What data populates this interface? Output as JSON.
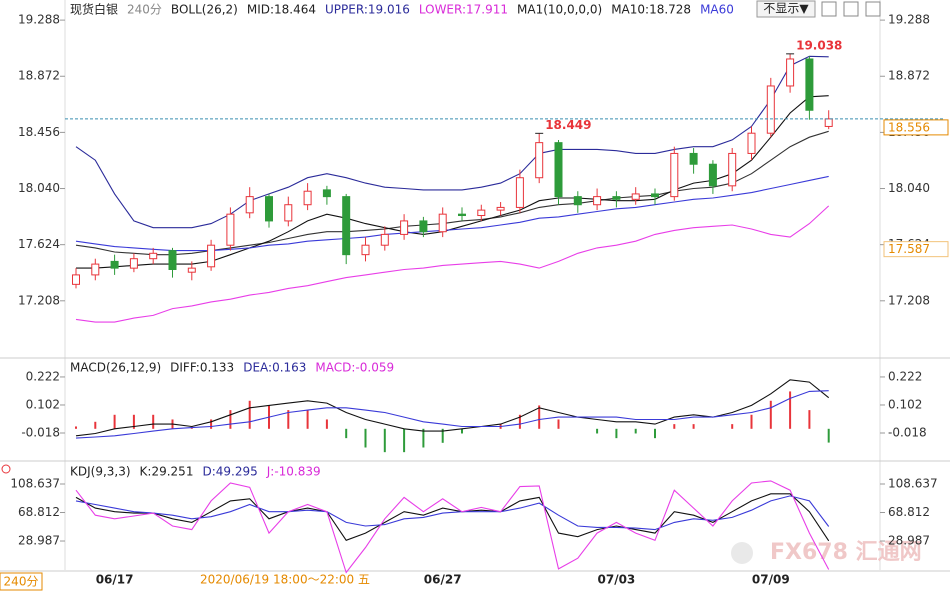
{
  "toolbar": {
    "hide_button": "不显示▼"
  },
  "watermark": "FX678 汇通网",
  "period_box": "240分",
  "chart_data": [
    {
      "type": "candlestick",
      "header": [
        {
          "text": "现货白银",
          "color": "#222222"
        },
        {
          "text": "240分",
          "color": "#888888"
        },
        {
          "text": "BOLL(26,2)",
          "color": "#222222"
        },
        {
          "text": "MID:18.464",
          "color": "#222222"
        },
        {
          "text": "UPPER:19.016",
          "color": "#2b2b9a"
        },
        {
          "text": "LOWER:17.911",
          "color": "#d82ad8"
        },
        {
          "text": "MA1(10,0,0,0)",
          "color": "#222222"
        },
        {
          "text": "MA10:18.728",
          "color": "#222222"
        },
        {
          "text": "MA60",
          "color": "#3a3ad8"
        }
      ],
      "categories": [
        null,
        null,
        "06/17",
        null,
        null,
        null,
        null,
        null,
        null,
        null,
        null,
        null,
        null,
        null,
        null,
        null,
        null,
        null,
        null,
        "06/27",
        null,
        null,
        null,
        null,
        null,
        null,
        null,
        null,
        "07/03",
        null,
        null,
        null,
        null,
        null,
        null,
        null,
        "07/09",
        null,
        null,
        null
      ],
      "cursor_label": "2020/06/19 18:00～22:00 五",
      "up_color": "#e8343a",
      "down_color": "#2e9b3a",
      "open": [
        17.33,
        17.4,
        17.5,
        17.45,
        17.52,
        17.58,
        17.42,
        17.46,
        17.62,
        17.86,
        17.98,
        17.8,
        17.92,
        18.03,
        17.98,
        17.55,
        17.62,
        17.7,
        17.8,
        17.72,
        17.85,
        17.84,
        17.88,
        17.9,
        18.12,
        18.38,
        17.98,
        17.92,
        17.98,
        17.96,
        18.0,
        17.98,
        18.3,
        18.22,
        18.06,
        18.3,
        18.45,
        18.8,
        19.0,
        18.5
      ],
      "high": [
        17.45,
        17.52,
        17.55,
        17.56,
        17.6,
        17.6,
        17.5,
        17.66,
        17.9,
        18.05,
        18.0,
        17.98,
        18.08,
        18.06,
        18.0,
        17.68,
        17.76,
        17.85,
        17.83,
        17.9,
        17.9,
        17.92,
        17.94,
        18.18,
        18.449,
        18.4,
        18.02,
        18.04,
        18.02,
        18.05,
        18.04,
        18.35,
        18.34,
        18.25,
        18.34,
        18.5,
        18.86,
        19.038,
        19.02,
        18.62
      ],
      "high_labels": [
        null,
        null,
        null,
        null,
        null,
        null,
        null,
        null,
        null,
        null,
        null,
        null,
        null,
        null,
        null,
        null,
        null,
        null,
        null,
        null,
        null,
        null,
        null,
        null,
        "18.449",
        null,
        null,
        null,
        null,
        null,
        null,
        null,
        null,
        null,
        null,
        null,
        null,
        "19.038",
        null,
        null
      ],
      "low": [
        17.3,
        17.36,
        17.4,
        17.42,
        17.48,
        17.38,
        17.36,
        17.43,
        17.58,
        17.82,
        17.75,
        17.76,
        17.88,
        17.92,
        17.48,
        17.5,
        17.58,
        17.66,
        17.68,
        17.68,
        17.8,
        17.8,
        17.84,
        17.86,
        18.08,
        17.92,
        17.86,
        17.88,
        17.9,
        17.92,
        17.92,
        17.95,
        18.15,
        18.0,
        18.02,
        18.25,
        18.42,
        18.75,
        18.55,
        18.48
      ],
      "close": [
        17.4,
        17.48,
        17.45,
        17.52,
        17.56,
        17.44,
        17.45,
        17.62,
        17.85,
        17.98,
        17.8,
        17.92,
        18.02,
        17.98,
        17.55,
        17.62,
        17.7,
        17.8,
        17.72,
        17.85,
        17.84,
        17.88,
        17.9,
        18.12,
        18.38,
        17.98,
        17.92,
        17.98,
        17.96,
        18.0,
        17.98,
        18.3,
        18.22,
        18.06,
        18.3,
        18.45,
        18.8,
        19.0,
        18.62,
        18.556
      ],
      "series": [
        {
          "color": "#2b2b9a",
          "values": [
            18.35,
            18.25,
            18.0,
            17.8,
            17.75,
            17.75,
            17.75,
            17.78,
            17.85,
            17.95,
            18.0,
            18.05,
            18.12,
            18.15,
            18.12,
            18.08,
            18.05,
            18.04,
            18.03,
            18.03,
            18.03,
            18.05,
            18.08,
            18.15,
            18.3,
            18.33,
            18.33,
            18.33,
            18.32,
            18.3,
            18.3,
            18.33,
            18.35,
            18.35,
            18.4,
            18.5,
            18.7,
            18.95,
            19.02,
            19.016
          ]
        },
        {
          "color": "#333333",
          "values": [
            17.62,
            17.6,
            17.57,
            17.56,
            17.55,
            17.55,
            17.56,
            17.58,
            17.6,
            17.62,
            17.64,
            17.67,
            17.7,
            17.72,
            17.72,
            17.73,
            17.74,
            17.76,
            17.77,
            17.78,
            17.8,
            17.81,
            17.83,
            17.86,
            17.9,
            17.92,
            17.93,
            17.95,
            17.97,
            17.98,
            17.99,
            18.02,
            18.04,
            18.05,
            18.08,
            18.15,
            18.25,
            18.35,
            18.42,
            18.464
          ]
        },
        {
          "color": "#e83ee8",
          "values": [
            17.07,
            17.05,
            17.05,
            17.08,
            17.1,
            17.15,
            17.17,
            17.2,
            17.22,
            17.25,
            17.27,
            17.3,
            17.32,
            17.35,
            17.38,
            17.4,
            17.42,
            17.44,
            17.45,
            17.47,
            17.48,
            17.49,
            17.5,
            17.48,
            17.45,
            17.5,
            17.56,
            17.6,
            17.62,
            17.65,
            17.7,
            17.73,
            17.75,
            17.76,
            17.77,
            17.74,
            17.7,
            17.68,
            17.78,
            17.911
          ]
        },
        {
          "color": "#111111",
          "values": [
            17.45,
            17.45,
            17.46,
            17.47,
            17.48,
            17.48,
            17.48,
            17.5,
            17.55,
            17.6,
            17.65,
            17.72,
            17.8,
            17.85,
            17.82,
            17.78,
            17.75,
            17.72,
            17.7,
            17.72,
            17.76,
            17.8,
            17.84,
            17.88,
            17.95,
            17.97,
            17.97,
            17.96,
            17.95,
            17.95,
            17.96,
            18.03,
            18.08,
            18.1,
            18.15,
            18.25,
            18.42,
            18.6,
            18.72,
            18.728
          ]
        },
        {
          "color": "#3a3ad8",
          "values": [
            17.65,
            17.63,
            17.61,
            17.6,
            17.59,
            17.58,
            17.58,
            17.58,
            17.59,
            17.6,
            17.62,
            17.63,
            17.65,
            17.66,
            17.67,
            17.68,
            17.7,
            17.71,
            17.72,
            17.73,
            17.74,
            17.75,
            17.77,
            17.79,
            17.82,
            17.83,
            17.85,
            17.87,
            17.89,
            17.9,
            17.92,
            17.94,
            17.96,
            17.97,
            17.99,
            18.01,
            18.04,
            18.07,
            18.1,
            18.13
          ]
        }
      ],
      "last_price": {
        "value": 18.556,
        "label": "18.556"
      },
      "side_label": {
        "value": 17.587,
        "label": "17.587"
      },
      "ylim": [
        16.799,
        19.437
      ],
      "yticks": [
        19.288,
        18.872,
        18.456,
        {
          "value": 18.04,
          "label": "18.040"
        },
        17.624,
        17.208
      ]
    },
    {
      "type": "macd",
      "header": [
        {
          "text": "MACD(26,12,9)",
          "color": "#222222"
        },
        {
          "text": "DIFF:0.133",
          "color": "#222222"
        },
        {
          "text": "DEA:0.163",
          "color": "#2b2b9a"
        },
        {
          "text": "MACD:-0.059",
          "color": "#d82ad8"
        }
      ],
      "up_color": "#e8343a",
      "down_color": "#2e9b3a",
      "histogram": [
        0.01,
        0.03,
        0.06,
        0.06,
        0.06,
        0.04,
        0.01,
        0.04,
        0.08,
        0.12,
        0.1,
        0.08,
        0.08,
        0.04,
        -0.04,
        -0.08,
        -0.1,
        -0.1,
        -0.08,
        -0.06,
        -0.02,
        0.0,
        0.02,
        0.06,
        0.1,
        0.04,
        0.0,
        -0.02,
        -0.04,
        -0.02,
        -0.04,
        0.02,
        0.02,
        0.0,
        0.02,
        0.06,
        0.12,
        0.16,
        0.08,
        -0.059
      ],
      "series": [
        {
          "color": "#111111",
          "values": [
            -0.03,
            -0.02,
            0.0,
            0.01,
            0.02,
            0.02,
            0.01,
            0.03,
            0.06,
            0.09,
            0.1,
            0.11,
            0.12,
            0.11,
            0.07,
            0.04,
            0.02,
            0.0,
            -0.01,
            -0.01,
            0.0,
            0.01,
            0.02,
            0.05,
            0.09,
            0.07,
            0.05,
            0.04,
            0.03,
            0.03,
            0.02,
            0.05,
            0.06,
            0.05,
            0.07,
            0.1,
            0.15,
            0.21,
            0.2,
            0.133
          ]
        },
        {
          "color": "#3a3ad8",
          "values": [
            -0.04,
            -0.035,
            -0.03,
            -0.02,
            -0.01,
            0.0,
            0.005,
            0.01,
            0.02,
            0.03,
            0.05,
            0.07,
            0.08,
            0.09,
            0.09,
            0.08,
            0.07,
            0.05,
            0.03,
            0.02,
            0.01,
            0.01,
            0.01,
            0.02,
            0.04,
            0.05,
            0.05,
            0.05,
            0.05,
            0.04,
            0.04,
            0.04,
            0.05,
            0.05,
            0.06,
            0.07,
            0.09,
            0.13,
            0.16,
            0.163
          ]
        }
      ],
      "ylim": [
        -0.125,
        0.286
      ],
      "yticks": [
        0.222,
        0.102,
        -0.018
      ]
    },
    {
      "type": "line",
      "header": [
        {
          "text": "KDJ(9,3,3)",
          "color": "#222222"
        },
        {
          "text": "K:29.251",
          "color": "#222222"
        },
        {
          "text": "D:49.295",
          "color": "#2b2b9a"
        },
        {
          "text": "J:-10.839",
          "color": "#d82ad8"
        }
      ],
      "series": [
        {
          "color": "#111111",
          "values": [
            90,
            75,
            70,
            68,
            68,
            60,
            55,
            70,
            85,
            88,
            60,
            70,
            75,
            70,
            30,
            40,
            55,
            70,
            65,
            75,
            70,
            72,
            70,
            85,
            90,
            40,
            35,
            45,
            50,
            45,
            40,
            70,
            65,
            55,
            70,
            85,
            95,
            95,
            70,
            29.251
          ]
        },
        {
          "color": "#3a3ad8",
          "values": [
            85,
            80,
            75,
            70,
            68,
            65,
            60,
            63,
            70,
            80,
            70,
            70,
            72,
            70,
            55,
            50,
            52,
            60,
            62,
            68,
            70,
            70,
            70,
            75,
            82,
            65,
            50,
            48,
            48,
            47,
            45,
            55,
            60,
            58,
            62,
            72,
            85,
            92,
            85,
            49.295
          ]
        },
        {
          "color": "#e83ee8",
          "values": [
            100,
            65,
            60,
            64,
            68,
            50,
            45,
            85,
            110,
            104,
            40,
            70,
            80,
            70,
            -15,
            20,
            60,
            90,
            70,
            88,
            70,
            76,
            70,
            105,
            106,
            -10,
            5,
            40,
            55,
            40,
            30,
            100,
            75,
            50,
            85,
            110,
            113,
            100,
            40,
            -10.839
          ]
        }
      ],
      "ylim": [
        -11.5,
        135.2
      ],
      "yticks": [
        108.637,
        68.812,
        28.987
      ]
    }
  ]
}
